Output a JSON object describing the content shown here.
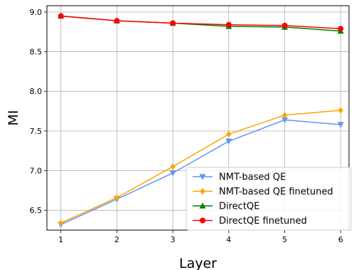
{
  "chart_data": {
    "type": "line",
    "xlabel": "Layer",
    "ylabel": "MI",
    "x": [
      1,
      2,
      3,
      4,
      5,
      6
    ],
    "xlim": [
      0.75,
      6.15
    ],
    "ylim": [
      6.25,
      9.08
    ],
    "xticks": [
      1,
      2,
      3,
      4,
      5,
      6
    ],
    "yticks": [
      6.5,
      7.0,
      7.5,
      8.0,
      8.5,
      9.0
    ],
    "ytick_labels": [
      "6.5",
      "7.0",
      "7.5",
      "8.0",
      "8.5",
      "9.0"
    ],
    "grid": true,
    "legend_position": "lower-right",
    "series": [
      {
        "name": "NMT-based QE",
        "color": "#6495ed",
        "marker": "triangle-down",
        "values": [
          6.32,
          6.64,
          6.97,
          7.37,
          7.64,
          7.58
        ]
      },
      {
        "name": "NMT-based QE finetuned",
        "color": "#ffa500",
        "marker": "diamond",
        "values": [
          6.34,
          6.66,
          7.05,
          7.46,
          7.7,
          7.76
        ]
      },
      {
        "name": "DirectQE",
        "color": "#008000",
        "marker": "triangle-up",
        "values": [
          8.95,
          8.89,
          8.86,
          8.82,
          8.81,
          8.76
        ]
      },
      {
        "name": "DirectQE finetuned",
        "color": "#ff0000",
        "marker": "circle",
        "values": [
          8.95,
          8.89,
          8.86,
          8.84,
          8.83,
          8.79
        ]
      }
    ]
  }
}
